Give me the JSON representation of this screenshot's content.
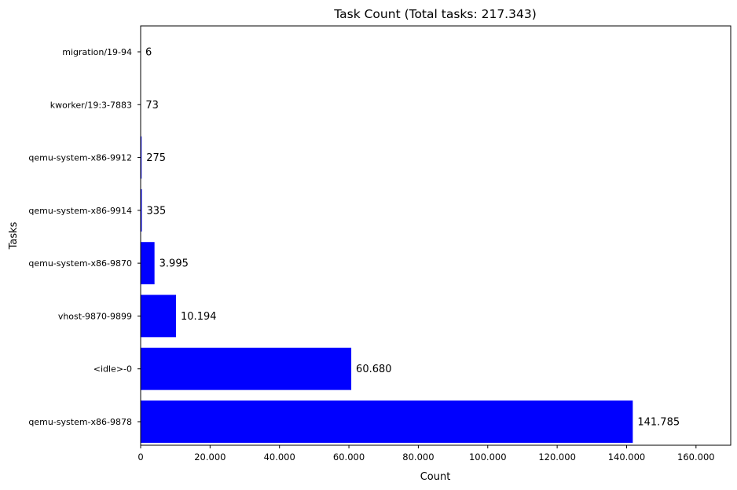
{
  "chart_data": {
    "type": "bar",
    "orientation": "horizontal",
    "title": "Task Count (Total tasks: 217.343)",
    "xlabel": "Count",
    "ylabel": "Tasks",
    "categories": [
      "migration/19-94",
      "kworker/19:3-7883",
      "qemu-system-x86-9912",
      "qemu-system-x86-9914",
      "qemu-system-x86-9870",
      "vhost-9870-9899",
      "<idle>-0",
      "qemu-system-x86-9878"
    ],
    "values": [
      6,
      73,
      275,
      335,
      3995,
      10194,
      60680,
      141785
    ],
    "value_labels": [
      "6",
      "73",
      "275",
      "335",
      "3.995",
      "10.194",
      "60.680",
      "141.785"
    ],
    "xlim": [
      0,
      170000
    ],
    "xticks": [
      0,
      20000,
      40000,
      60000,
      80000,
      100000,
      120000,
      140000,
      160000
    ],
    "xtick_labels": [
      "0",
      "20.000",
      "40.000",
      "60.000",
      "80.000",
      "100.000",
      "120.000",
      "140.000",
      "160.000"
    ],
    "bar_color": "#0000ff",
    "grid": false,
    "legend": "none"
  }
}
